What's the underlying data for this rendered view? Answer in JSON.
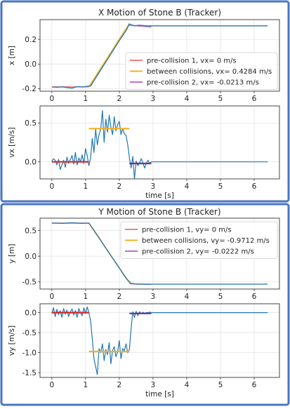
{
  "colors": {
    "frame": "#4a76c4",
    "tracker": "#1f77b4",
    "pre1": "#f08080",
    "between": "#f5b021",
    "pre2": "#b575c9",
    "flat_red": "#d62728",
    "flat_purple": "#7b2d8b"
  },
  "chart_data": [
    {
      "id": "x_position",
      "type": "line",
      "title": "X Motion of Stone B (Tracker)",
      "xlabel": "",
      "ylabel": "x [m]",
      "xlim": [
        -0.35,
        6.75
      ],
      "ylim": [
        -0.22,
        0.36
      ],
      "xticks": [
        0,
        1,
        2,
        3,
        4,
        5,
        6
      ],
      "yticks": [
        -0.2,
        0.0,
        0.2
      ],
      "ytick_labels": [
        "-0.2",
        "0.0",
        "0.2"
      ],
      "legend_position": "center-right",
      "legend": [
        {
          "label": "pre-collision 1, vx= 0 m/s",
          "color": "pre1"
        },
        {
          "label": "between collisions, vx= 0.4284 m/s",
          "color": "between"
        },
        {
          "label": "pre-collision 2, vx= -0.0213 m/s",
          "color": "pre2"
        }
      ],
      "series": [
        {
          "name": "pre-collision 1, vx= 0 m/s",
          "color": "pre1",
          "width": 1.6,
          "x": [
            0.0,
            1.1
          ],
          "y": [
            -0.185,
            -0.185
          ]
        },
        {
          "name": "between collisions, vx= 0.4284 m/s",
          "color": "between",
          "width": 1.8,
          "x": [
            1.1,
            2.3
          ],
          "y": [
            -0.185,
            0.329
          ]
        },
        {
          "name": "pre-collision 2, vx= -0.0213 m/s",
          "color": "pre2",
          "width": 1.6,
          "x": [
            2.3,
            2.95
          ],
          "y": [
            0.315,
            0.301
          ]
        },
        {
          "color": "tracker",
          "width": 1.3,
          "x": [
            0.0,
            0.15,
            0.3,
            0.45,
            0.6,
            0.75,
            0.9,
            1.05,
            1.15,
            1.4,
            1.7,
            2.0,
            2.2,
            2.3,
            2.45,
            2.6,
            2.8,
            3.0,
            4.0,
            5.0,
            6.0,
            6.4
          ],
          "y": [
            -0.186,
            -0.188,
            -0.185,
            -0.19,
            -0.195,
            -0.183,
            -0.186,
            -0.18,
            -0.178,
            -0.07,
            0.06,
            0.19,
            0.27,
            0.325,
            0.31,
            0.315,
            0.31,
            0.31,
            0.31,
            0.31,
            0.31,
            0.31
          ]
        }
      ]
    },
    {
      "id": "x_velocity",
      "type": "line",
      "title": "",
      "xlabel": "time [s]",
      "ylabel": "vx [m/s]",
      "xlim": [
        -0.35,
        6.75
      ],
      "ylim": [
        -0.22,
        0.72
      ],
      "xticks": [
        0,
        1,
        2,
        3,
        4,
        5,
        6
      ],
      "yticks": [
        0.0,
        0.5
      ],
      "ytick_labels": [
        "0.0",
        "0.5"
      ],
      "series": [
        {
          "color": "tracker",
          "width": 1.2,
          "x": [
            0.0,
            0.05,
            0.1,
            0.15,
            0.2,
            0.25,
            0.3,
            0.35,
            0.4,
            0.45,
            0.5,
            0.55,
            0.6,
            0.65,
            0.7,
            0.75,
            0.8,
            0.85,
            0.9,
            0.95,
            1.0,
            1.05,
            1.1,
            1.15,
            1.2,
            1.25,
            1.3,
            1.35,
            1.4,
            1.45,
            1.5,
            1.55,
            1.6,
            1.65,
            1.7,
            1.75,
            1.8,
            1.85,
            1.9,
            1.95,
            2.0,
            2.05,
            2.1,
            2.15,
            2.2,
            2.25,
            2.3,
            2.35,
            2.4,
            2.45,
            2.5,
            2.55,
            2.6,
            2.65,
            2.7,
            2.75,
            2.8,
            2.85,
            2.9,
            2.95,
            3.0,
            3.5,
            4.0,
            4.5,
            5.0,
            5.5,
            6.0,
            6.4
          ],
          "y": [
            0.01,
            0.04,
            0.02,
            -0.04,
            0.03,
            -0.1,
            -0.04,
            0.02,
            -0.07,
            0.06,
            -0.02,
            0.03,
            0.08,
            -0.03,
            0.12,
            -0.04,
            0.05,
            0.0,
            0.09,
            -0.02,
            0.17,
            0.08,
            -0.05,
            0.05,
            0.3,
            0.12,
            0.42,
            0.22,
            0.35,
            0.42,
            0.66,
            0.25,
            0.55,
            0.38,
            0.6,
            0.45,
            0.35,
            0.58,
            0.4,
            0.48,
            0.52,
            0.35,
            0.43,
            0.36,
            0.34,
            0.22,
            0.05,
            -0.08,
            0.07,
            -0.22,
            0.01,
            -0.05,
            -0.02,
            0.04,
            -0.01,
            -0.08,
            -0.02,
            0.02,
            -0.02,
            0.0,
            0.0,
            0.0,
            0.0,
            0.0,
            0.0,
            0.0,
            0.0,
            0.0
          ]
        },
        {
          "color": "flat_red",
          "width": 2.2,
          "x": [
            0.0,
            1.1
          ],
          "y": [
            0.0,
            0.0
          ]
        },
        {
          "color": "between",
          "width": 2.2,
          "x": [
            1.1,
            2.3
          ],
          "y": [
            0.428,
            0.428
          ]
        },
        {
          "color": "flat_purple",
          "width": 2.2,
          "x": [
            2.3,
            2.95
          ],
          "y": [
            -0.021,
            -0.021
          ]
        }
      ]
    },
    {
      "id": "y_position",
      "type": "line",
      "title": "Y Motion of Stone B (Tracker)",
      "xlabel": "",
      "ylabel": "y [m]",
      "xlim": [
        -0.35,
        6.75
      ],
      "ylim": [
        -0.64,
        0.74
      ],
      "xticks": [
        0,
        1,
        2,
        3,
        4,
        5,
        6
      ],
      "yticks": [
        -0.5,
        0.0,
        0.5
      ],
      "ytick_labels": [
        "-0.5",
        "0.0",
        "0.5"
      ],
      "legend_position": "top-right",
      "legend": [
        {
          "label": "pre-collision 1, vy= 0 m/s",
          "color": "pre1"
        },
        {
          "label": "between collisions, vy= -0.9712 m/s",
          "color": "between"
        },
        {
          "label": "pre-collision 2, vy= -0.0222 m/s",
          "color": "pre2"
        }
      ],
      "series": [
        {
          "name": "pre-collision 1, vy= 0 m/s",
          "color": "pre1",
          "width": 1.6,
          "x": [
            0.0,
            1.1
          ],
          "y": [
            0.645,
            0.645
          ]
        },
        {
          "name": "between collisions, vy= -0.9712 m/s",
          "color": "between",
          "width": 1.8,
          "x": [
            1.1,
            2.3
          ],
          "y": [
            0.645,
            -0.52
          ]
        },
        {
          "name": "pre-collision 2, vy= -0.0222 m/s",
          "color": "pre2",
          "width": 1.6,
          "x": [
            2.3,
            2.95
          ],
          "y": [
            -0.536,
            -0.55
          ]
        },
        {
          "color": "tracker",
          "width": 1.3,
          "x": [
            0.0,
            0.3,
            0.6,
            0.9,
            1.1,
            1.4,
            1.7,
            2.0,
            2.2,
            2.35,
            2.5,
            2.8,
            3.0,
            4.0,
            5.0,
            6.0,
            6.4
          ],
          "y": [
            0.645,
            0.64,
            0.648,
            0.64,
            0.645,
            0.36,
            0.06,
            -0.23,
            -0.43,
            -0.53,
            -0.545,
            -0.545,
            -0.545,
            -0.545,
            -0.545,
            -0.545,
            -0.545
          ]
        }
      ]
    },
    {
      "id": "y_velocity",
      "type": "line",
      "title": "",
      "xlabel": "time [s]",
      "ylabel": "vy [m/s]",
      "xlim": [
        -0.35,
        6.75
      ],
      "ylim": [
        -1.62,
        0.22
      ],
      "xticks": [
        0,
        1,
        2,
        3,
        4,
        5,
        6
      ],
      "yticks": [
        0.0,
        -0.5,
        -1.0,
        -1.5
      ],
      "ytick_labels": [
        "0.0",
        "-0.5",
        "-1.0",
        "-1.5"
      ],
      "series": [
        {
          "color": "tracker",
          "width": 1.2,
          "x": [
            0.0,
            0.05,
            0.1,
            0.15,
            0.2,
            0.25,
            0.3,
            0.35,
            0.4,
            0.45,
            0.5,
            0.55,
            0.6,
            0.65,
            0.7,
            0.75,
            0.8,
            0.85,
            0.9,
            0.95,
            1.0,
            1.05,
            1.1,
            1.15,
            1.2,
            1.25,
            1.3,
            1.35,
            1.4,
            1.45,
            1.5,
            1.55,
            1.6,
            1.65,
            1.7,
            1.75,
            1.8,
            1.85,
            1.9,
            1.95,
            2.0,
            2.05,
            2.1,
            2.15,
            2.2,
            2.25,
            2.3,
            2.35,
            2.4,
            2.45,
            2.5,
            2.55,
            2.6,
            2.65,
            2.7,
            2.75,
            2.8,
            2.85,
            2.9,
            2.95,
            3.0,
            3.5,
            4.0,
            4.5,
            5.0,
            5.5,
            6.0,
            6.4
          ],
          "y": [
            -0.02,
            0.12,
            -0.1,
            0.08,
            -0.05,
            0.05,
            -0.12,
            0.1,
            -0.04,
            0.06,
            -0.1,
            0.02,
            0.09,
            -0.06,
            0.05,
            -0.12,
            0.1,
            0.0,
            -0.08,
            0.12,
            -0.02,
            0.14,
            0.0,
            -0.2,
            -0.65,
            -1.15,
            -1.35,
            -1.55,
            -0.9,
            -1.0,
            -0.78,
            -1.2,
            -0.92,
            -1.05,
            -0.75,
            -1.28,
            -0.95,
            -0.85,
            -1.1,
            -0.98,
            -0.7,
            -1.15,
            -0.9,
            -0.95,
            -0.78,
            -1.0,
            -0.92,
            -0.4,
            0.02,
            -0.12,
            0.03,
            -0.08,
            0.02,
            -0.03,
            0.01,
            -0.02,
            0.0,
            0.0,
            0.01,
            0.0,
            0.0,
            0.0,
            0.0,
            0.0,
            0.0,
            0.0,
            0.0,
            0.0
          ]
        },
        {
          "color": "flat_red",
          "width": 2.2,
          "x": [
            0.0,
            1.1
          ],
          "y": [
            0.0,
            0.0
          ]
        },
        {
          "color": "between",
          "width": 2.2,
          "x": [
            1.1,
            2.3
          ],
          "y": [
            -0.971,
            -0.971
          ]
        },
        {
          "color": "flat_purple",
          "width": 2.2,
          "x": [
            2.3,
            2.95
          ],
          "y": [
            -0.022,
            -0.022
          ]
        }
      ]
    }
  ]
}
